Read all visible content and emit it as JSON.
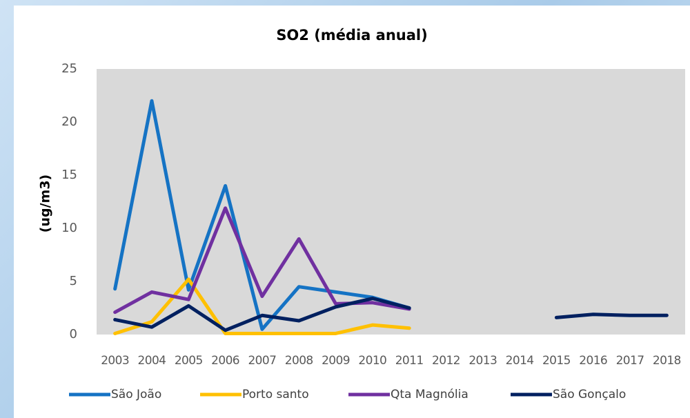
{
  "chart_data": {
    "type": "line",
    "title": "SO2 (média anual)",
    "y_label": "(ug/m3)",
    "categories": [
      "2003",
      "2004",
      "2005",
      "2006",
      "2007",
      "2008",
      "2009",
      "2010",
      "2011",
      "2012",
      "2013",
      "2014",
      "2015",
      "2016",
      "2017",
      "2018"
    ],
    "series": [
      {
        "name": "São João",
        "color": "#1573c4",
        "values": [
          4.3,
          22,
          4.2,
          14,
          0.5,
          4.5,
          4.0,
          3.5,
          2.5,
          null,
          null,
          null,
          null,
          null,
          null,
          null
        ]
      },
      {
        "name": "Porto santo",
        "color": "#ffc000",
        "values": [
          0.1,
          1.2,
          5.2,
          0.1,
          0.1,
          0.1,
          0.1,
          0.9,
          0.6,
          null,
          null,
          null,
          null,
          null,
          null,
          null
        ]
      },
      {
        "name": "Qta Magnólia",
        "color": "#7030a0",
        "values": [
          2.1,
          4.0,
          3.3,
          11.9,
          3.6,
          9.0,
          2.9,
          3.0,
          2.4,
          null,
          null,
          null,
          null,
          null,
          null,
          null
        ]
      },
      {
        "name": "São Gonçalo",
        "color": "#002060",
        "values": [
          1.4,
          0.7,
          2.7,
          0.4,
          1.8,
          1.3,
          2.6,
          3.4,
          2.5,
          null,
          null,
          null,
          1.6,
          1.9,
          1.8,
          1.8
        ]
      }
    ],
    "ylim": [
      0,
      25
    ],
    "yticks": [
      0,
      5,
      10,
      15,
      20,
      25
    ],
    "plot_background": "#d9d9d9",
    "legend": "bottom"
  }
}
